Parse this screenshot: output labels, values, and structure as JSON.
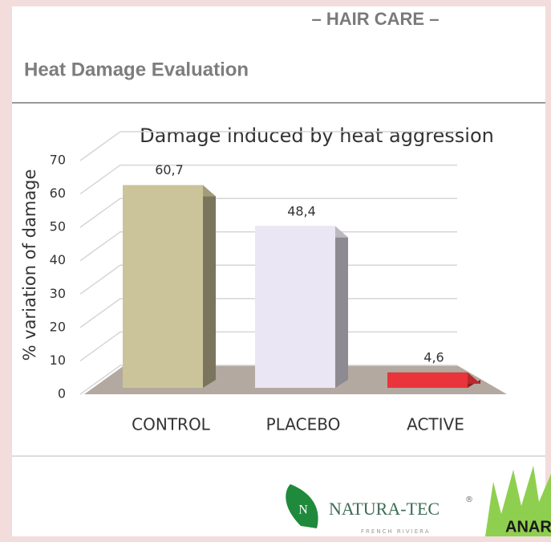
{
  "header": {
    "section": "– HAIR CARE –",
    "title": "Heat Damage Evaluation"
  },
  "chart_data": {
    "type": "bar",
    "title": "Damage induced by heat aggression",
    "y_label": "% variation of damage",
    "categories": [
      "CONTROL",
      "PLACEBO",
      "ACTIVE"
    ],
    "values": [
      60.7,
      48.4,
      4.6
    ],
    "value_labels": [
      "60,7",
      "48,4",
      "4,6"
    ],
    "colors": [
      "#cbc49a",
      "#ebe6f3",
      "#e8343a"
    ],
    "ylim": [
      0,
      70
    ],
    "yticks": [
      0,
      10,
      20,
      30,
      40,
      50,
      60,
      70
    ],
    "grid": true
  },
  "logos": {
    "brand": "NATURA-TEC",
    "registered": "®",
    "tagline": "FRENCH RIVIERA",
    "partner": "ANAR"
  }
}
